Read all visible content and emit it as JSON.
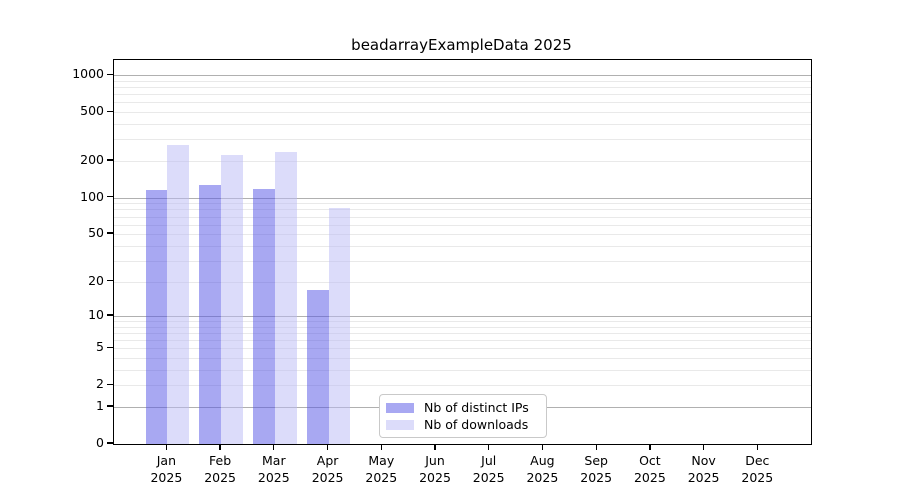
{
  "title": "beadarrayExampleData 2025",
  "chart_data": {
    "type": "bar",
    "title": "beadarrayExampleData 2025",
    "categories": [
      "Jan",
      "Feb",
      "Mar",
      "Apr",
      "May",
      "Jun",
      "Jul",
      "Aug",
      "Sep",
      "Oct",
      "Nov",
      "Dec"
    ],
    "x_year": "2025",
    "series": [
      {
        "name": "Nb of distinct IPs",
        "color": "#a8a8f2",
        "values": [
          116,
          128,
          118,
          17,
          null,
          null,
          null,
          null,
          null,
          null,
          null,
          null
        ]
      },
      {
        "name": "Nb of downloads",
        "color": "#dcdcfa",
        "values": [
          268,
          222,
          238,
          82,
          null,
          null,
          null,
          null,
          null,
          null,
          null,
          null
        ]
      }
    ],
    "yscale": "log1p",
    "ylim": [
      0,
      1330
    ],
    "y_ticks": [
      0,
      1,
      2,
      5,
      10,
      20,
      50,
      100,
      200,
      500,
      1000
    ],
    "grid": {
      "orientation": "horizontal",
      "major_color": "#b0b0b0",
      "minor_color": "#e9e9e9"
    },
    "legend": {
      "position": "lower-center",
      "items": [
        "Nb of distinct IPs",
        "Nb of downloads"
      ]
    }
  }
}
